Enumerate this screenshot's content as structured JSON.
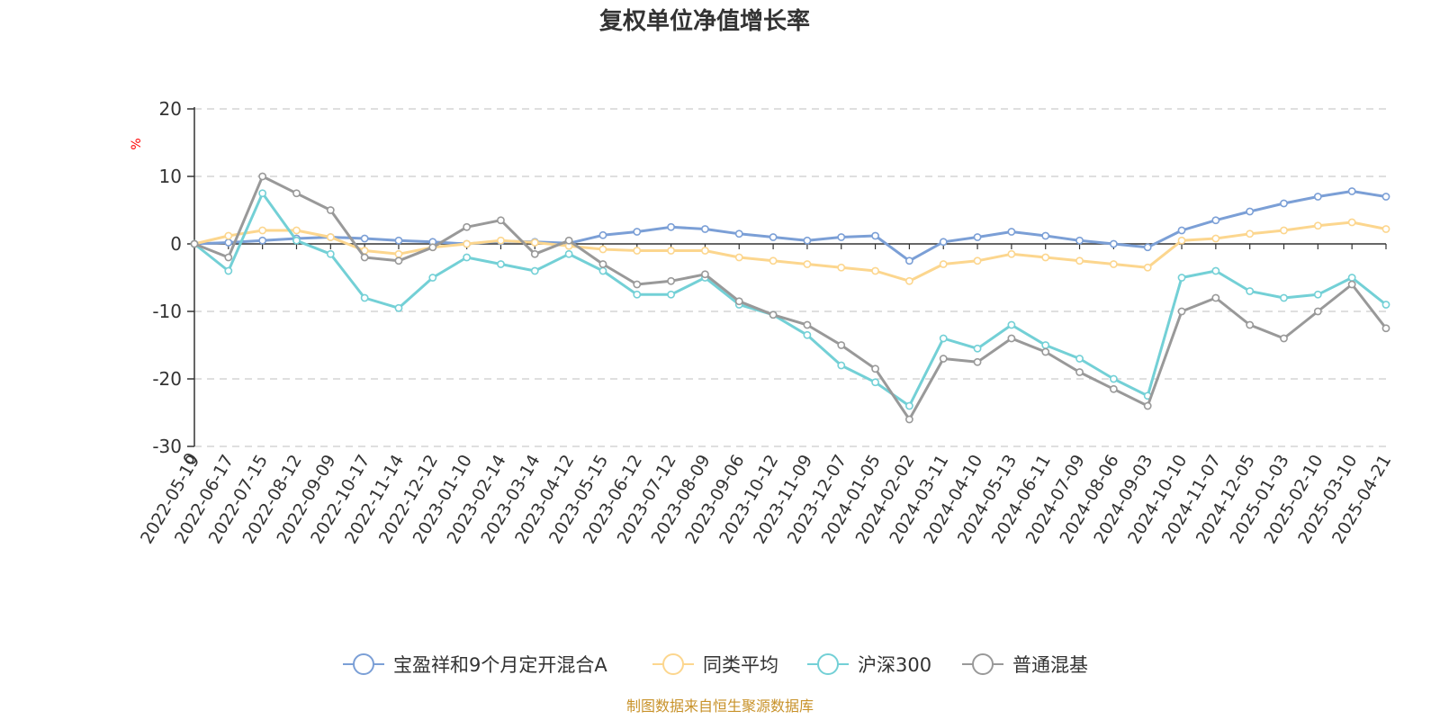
{
  "chart_data": {
    "type": "line",
    "title": "复权单位净值增长率",
    "unit_label": "%",
    "source": "制图数据来自恒生聚源数据库",
    "ylim": [
      -30,
      20
    ],
    "yticks": [
      -30,
      -20,
      -10,
      0,
      10,
      20
    ],
    "grid": true,
    "legend_position": "bottom",
    "x": [
      "2022-05-19",
      "2022-06-17",
      "2022-07-15",
      "2022-08-12",
      "2022-09-09",
      "2022-10-17",
      "2022-11-14",
      "2022-12-12",
      "2023-01-10",
      "2023-02-14",
      "2023-03-14",
      "2023-04-12",
      "2023-05-15",
      "2023-06-12",
      "2023-07-12",
      "2023-08-09",
      "2023-09-06",
      "2023-10-12",
      "2023-11-09",
      "2023-12-07",
      "2024-01-05",
      "2024-02-02",
      "2024-03-11",
      "2024-04-10",
      "2024-05-13",
      "2024-06-11",
      "2024-07-09",
      "2024-08-06",
      "2024-09-03",
      "2024-10-10",
      "2024-11-07",
      "2024-12-05",
      "2025-01-03",
      "2025-02-10",
      "2025-03-10",
      "2025-04-21"
    ],
    "x_first_label": "0",
    "series": [
      {
        "name": "宝盈祥和9个月定开混合A",
        "color": "#7b9fd6",
        "values": [
          0,
          0.2,
          0.5,
          0.8,
          1.0,
          0.8,
          0.5,
          0.3,
          0.0,
          0.4,
          0.3,
          0.1,
          1.3,
          1.8,
          2.5,
          2.2,
          1.5,
          1.0,
          0.5,
          1.0,
          1.2,
          -2.5,
          0.3,
          1.0,
          1.8,
          1.2,
          0.5,
          0.0,
          -0.5,
          2.0,
          3.5,
          4.8,
          6.0,
          7.0,
          7.8,
          7.0
        ]
      },
      {
        "name": "同类平均",
        "color": "#fcd68e",
        "values": [
          0,
          1.2,
          2.0,
          2.0,
          1.0,
          -1.0,
          -1.5,
          -0.5,
          0.0,
          0.5,
          0.2,
          -0.3,
          -0.8,
          -1.0,
          -1.0,
          -1.0,
          -2.0,
          -2.5,
          -3.0,
          -3.5,
          -4.0,
          -5.5,
          -3.0,
          -2.5,
          -1.5,
          -2.0,
          -2.5,
          -3.0,
          -3.5,
          0.5,
          0.8,
          1.5,
          2.0,
          2.7,
          3.2,
          2.2
        ]
      },
      {
        "name": "沪深300",
        "color": "#73d0d6",
        "values": [
          0,
          -4.0,
          7.5,
          0.5,
          -1.5,
          -8.0,
          -9.5,
          -5.0,
          -2.0,
          -3.0,
          -4.0,
          -1.5,
          -4.0,
          -7.5,
          -7.5,
          -5.0,
          -9.0,
          -10.5,
          -13.5,
          -18.0,
          -20.5,
          -24.0,
          -14.0,
          -15.5,
          -12.0,
          -15.0,
          -17.0,
          -20.0,
          -22.5,
          -5.0,
          -4.0,
          -7.0,
          -8.0,
          -7.5,
          -5.0,
          -9.0
        ]
      },
      {
        "name": "普通混基",
        "color": "#999999",
        "values": [
          0,
          -2.0,
          10.0,
          7.5,
          5.0,
          -2.0,
          -2.5,
          -0.5,
          2.5,
          3.5,
          -1.5,
          0.5,
          -3.0,
          -6.0,
          -5.5,
          -4.5,
          -8.5,
          -10.5,
          -12.0,
          -15.0,
          -18.5,
          -26.0,
          -17.0,
          -17.5,
          -14.0,
          -16.0,
          -19.0,
          -21.5,
          -24.0,
          -10.0,
          -8.0,
          -12.0,
          -14.0,
          -10.0,
          -6.0,
          -12.5
        ]
      }
    ]
  }
}
